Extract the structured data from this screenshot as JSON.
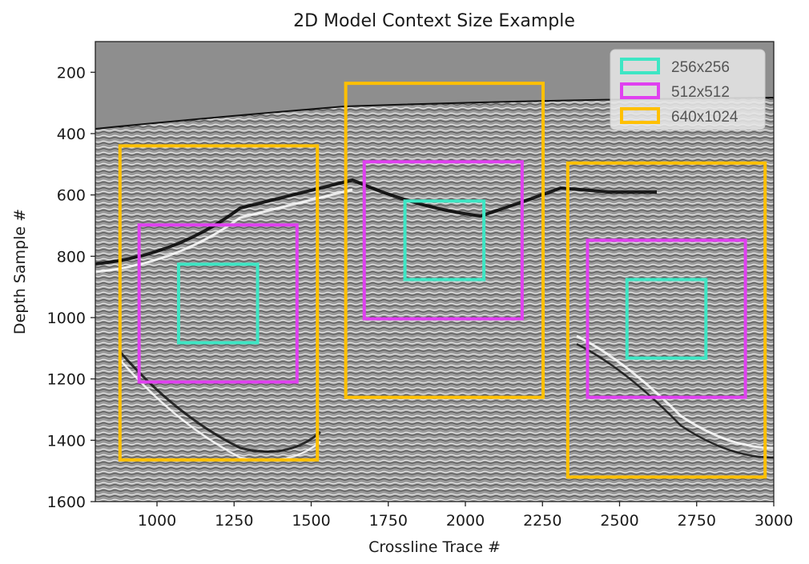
{
  "chart_data": {
    "type": "image-with-annotations",
    "title": "2D Model Context Size Example",
    "xlabel": "Crossline Trace #",
    "ylabel": "Depth Sample #",
    "xlim": [
      800,
      3000
    ],
    "ylim": [
      1600,
      100
    ],
    "xticks": [
      1000,
      1250,
      1500,
      1750,
      2000,
      2250,
      2500,
      2750,
      3000
    ],
    "yticks": [
      200,
      400,
      600,
      800,
      1000,
      1200,
      1400,
      1600
    ],
    "background": "seismic grayscale section",
    "legend": {
      "position": "upper right",
      "entries": [
        {
          "label": "256x256",
          "color": "#3ee6c4"
        },
        {
          "label": "512x512",
          "color": "#e040f0"
        },
        {
          "label": "640x1024",
          "color": "#ffc000"
        }
      ]
    },
    "rectangles": [
      {
        "size": "640x1024",
        "color": "#ffc000",
        "x0": 880,
        "x1": 1520,
        "y0": 440,
        "y1": 1464
      },
      {
        "size": "512x512",
        "color": "#e040f0",
        "x0": 942,
        "x1": 1454,
        "y0": 698,
        "y1": 1210
      },
      {
        "size": "256x256",
        "color": "#3ee6c4",
        "x0": 1070,
        "x1": 1326,
        "y0": 826,
        "y1": 1082
      },
      {
        "size": "640x1024",
        "color": "#ffc000",
        "x0": 1612,
        "x1": 2252,
        "y0": 236,
        "y1": 1260
      },
      {
        "size": "512x512",
        "color": "#e040f0",
        "x0": 1672,
        "x1": 2184,
        "y0": 492,
        "y1": 1004
      },
      {
        "size": "256x256",
        "color": "#3ee6c4",
        "x0": 1804,
        "x1": 2060,
        "y0": 620,
        "y1": 876
      },
      {
        "size": "640x1024",
        "color": "#ffc000",
        "x0": 2332,
        "x1": 2972,
        "y0": 496,
        "y1": 1520
      },
      {
        "size": "512x512",
        "color": "#e040f0",
        "x0": 2396,
        "x1": 2908,
        "y0": 748,
        "y1": 1260
      },
      {
        "size": "256x256",
        "color": "#3ee6c4",
        "x0": 2524,
        "x1": 2780,
        "y0": 876,
        "y1": 1132
      }
    ]
  }
}
